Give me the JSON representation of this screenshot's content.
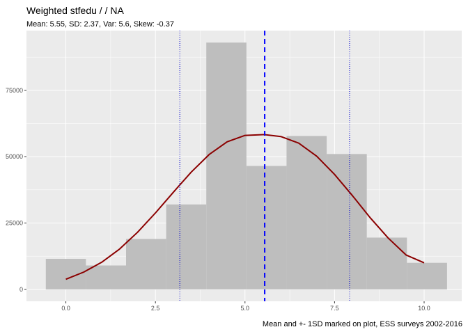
{
  "chart_data": {
    "type": "bar",
    "title": "Weighted  stfedu /  / NA",
    "subtitle": "Mean: 5.55, SD: 2.37, Var: 5.6, Skew: -0.37",
    "caption": "Mean and +- 1SD marked on plot, ESS surveys 2002-2016",
    "xlabel": "",
    "ylabel": "",
    "xlim": [
      -1.1,
      11.05
    ],
    "ylim": [
      -4500,
      97500
    ],
    "x_ticks": [
      0,
      2.5,
      5,
      7.5,
      10
    ],
    "x_tick_labels": [
      "0.0",
      "2.5",
      "5.0",
      "7.5",
      "10.0"
    ],
    "y_ticks": [
      0,
      25000,
      50000,
      75000
    ],
    "y_tick_labels": [
      "0",
      "25000",
      "50000",
      "75000"
    ],
    "grid": true,
    "bars": [
      {
        "x0": -0.56,
        "x1": 0.56,
        "value": 11500
      },
      {
        "x0": 0.56,
        "x1": 1.68,
        "value": 9000
      },
      {
        "x0": 1.68,
        "x1": 2.8,
        "value": 19000
      },
      {
        "x0": 2.8,
        "x1": 3.92,
        "value": 32000
      },
      {
        "x0": 3.92,
        "x1": 5.04,
        "value": 93000
      },
      {
        "x0": 5.04,
        "x1": 6.16,
        "value": 46500
      },
      {
        "x0": 6.16,
        "x1": 7.28,
        "value": 57800
      },
      {
        "x0": 7.28,
        "x1": 8.4,
        "value": 51000
      },
      {
        "x0": 8.4,
        "x1": 9.52,
        "value": 19500
      },
      {
        "x0": 9.52,
        "x1": 10.64,
        "value": 10000
      }
    ],
    "density_curve": {
      "x": [
        0,
        0.5,
        1,
        1.5,
        2,
        2.5,
        3,
        3.5,
        4,
        4.5,
        5,
        5.5,
        5.55,
        6,
        6.5,
        7,
        7.5,
        8,
        8.5,
        9,
        9.5,
        10
      ],
      "y": [
        3800,
        6500,
        10200,
        15200,
        21500,
        28800,
        36600,
        44200,
        50800,
        55600,
        58000,
        58300,
        58300,
        57600,
        55100,
        50200,
        43300,
        35300,
        26900,
        19300,
        12900,
        10000
      ]
    },
    "mean": 5.55,
    "sd_lines": [
      3.18,
      7.92
    ],
    "colors": {
      "panel": "#ebebeb",
      "grid": "#ffffff",
      "bars": "#bebebe",
      "curve": "#8b0000",
      "mean_line": "#0000ff",
      "sd_lines": "#0000cd",
      "tick_text": "#4d4d4d"
    }
  }
}
